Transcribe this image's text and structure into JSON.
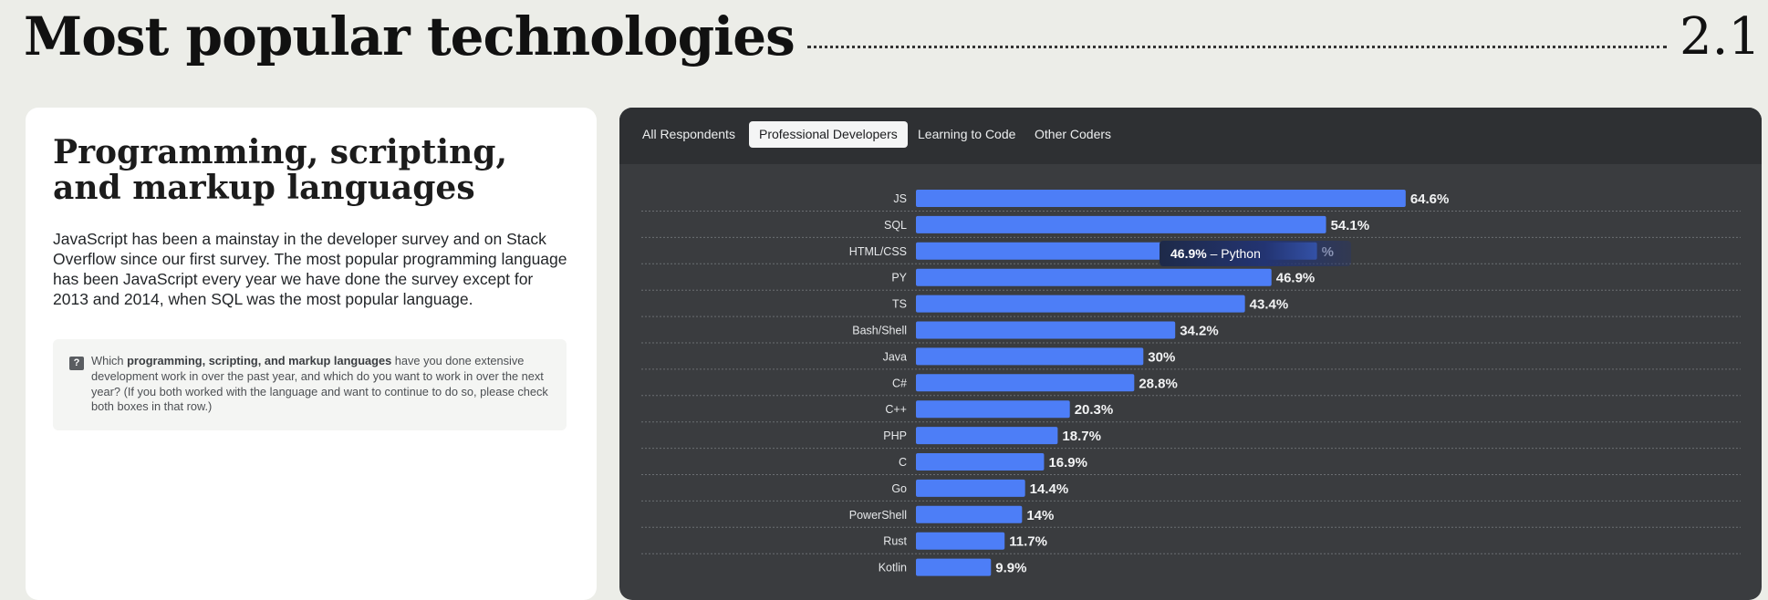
{
  "header": {
    "title": "Most popular technologies",
    "section_number": "2.1"
  },
  "left": {
    "heading": "Programming, scripting, and markup languages",
    "description": "JavaScript has been a mainstay in the developer survey and on Stack Overflow since our first survey. The most popular programming language has been JavaScript every year we have done the survey except for 2013 and 2014, when SQL was the most popular language.",
    "question": {
      "prefix": "Which ",
      "bold": "programming, scripting, and markup languages",
      "suffix": " have you done extensive development work in over the past year, and which do you want to work in over the next year? (If you both worked with the language and want to continue to do so, please check both boxes in that row.)"
    }
  },
  "tabs": [
    {
      "label": "All Respondents",
      "active": false
    },
    {
      "label": "Professional Developers",
      "active": true
    },
    {
      "label": "Learning to Code",
      "active": false
    },
    {
      "label": "Other Coders",
      "active": false
    }
  ],
  "tooltip": {
    "value": "46.9%",
    "separator": " – ",
    "name": "Python"
  },
  "colors": {
    "bar": "#4d7ef7",
    "panel": "#3a3c3f",
    "tabbar": "#2e3033"
  },
  "chart_data": {
    "type": "bar",
    "orientation": "horizontal",
    "categories": [
      "JS",
      "SQL",
      "HTML/CSS",
      "PY",
      "TS",
      "Bash/Shell",
      "Java",
      "C#",
      "C++",
      "PHP",
      "C",
      "Go",
      "PowerShell",
      "Rust",
      "Kotlin"
    ],
    "values": [
      64.6,
      54.1,
      52.9,
      46.9,
      43.4,
      34.2,
      30,
      28.8,
      20.3,
      18.7,
      16.9,
      14.4,
      14,
      11.7,
      9.9
    ],
    "value_labels": [
      "64.6%",
      "54.1%",
      "%",
      "46.9%",
      "43.4%",
      "34.2%",
      "30%",
      "28.8%",
      "20.3%",
      "18.7%",
      "16.9%",
      "14.4%",
      "14%",
      "11.7%",
      "9.9%"
    ],
    "xlim": [
      0,
      100
    ]
  }
}
